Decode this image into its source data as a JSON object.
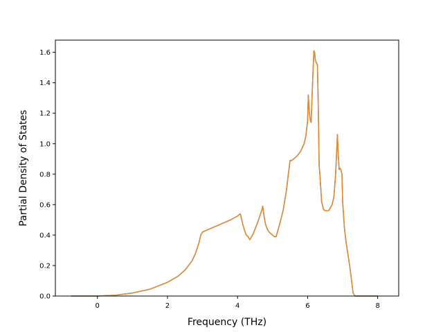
{
  "chart_data": {
    "type": "line",
    "title": "",
    "xlabel": "Frequency (THz)",
    "ylabel": "Partial Density of States",
    "xlim": [
      -1.2,
      8.6
    ],
    "ylim": [
      0.0,
      1.68
    ],
    "xticks": [
      0,
      2,
      4,
      6,
      8
    ],
    "yticks": [
      0.0,
      0.2,
      0.4,
      0.6,
      0.8,
      1.0,
      1.2,
      1.4,
      1.6
    ],
    "grid": false,
    "legend": "none",
    "series": [
      {
        "color": "#1f77b4",
        "x": [
          -0.75,
          0.0,
          0.5,
          1.0,
          1.5,
          2.0,
          2.3,
          2.5,
          2.7,
          2.8,
          2.9,
          2.95,
          3.0,
          3.2,
          3.4,
          3.6,
          3.8,
          4.0,
          4.08,
          4.15,
          4.2,
          4.25,
          4.3,
          4.35,
          4.4,
          4.45,
          4.5,
          4.6,
          4.7,
          4.72,
          4.76,
          4.8,
          4.85,
          4.9,
          4.95,
          5.0,
          5.05,
          5.1,
          5.15,
          5.2,
          5.3,
          5.4,
          5.45,
          5.5,
          5.55,
          5.6,
          5.7,
          5.8,
          5.9,
          5.95,
          6.0,
          6.02,
          6.05,
          6.08,
          6.1,
          6.15,
          6.18,
          6.2,
          6.22,
          6.25,
          6.28,
          6.3,
          6.33,
          6.35,
          6.4,
          6.45,
          6.5,
          6.6,
          6.7,
          6.75,
          6.8,
          6.85,
          6.87,
          6.9,
          6.92,
          6.95,
          6.98,
          7.0,
          7.05,
          7.1,
          7.2,
          7.3,
          7.35,
          7.4,
          8.0
        ],
        "y": [
          0.0,
          0.0,
          0.005,
          0.02,
          0.045,
          0.09,
          0.13,
          0.17,
          0.23,
          0.28,
          0.35,
          0.4,
          0.42,
          0.44,
          0.46,
          0.48,
          0.5,
          0.525,
          0.54,
          0.47,
          0.43,
          0.4,
          0.39,
          0.37,
          0.39,
          0.41,
          0.44,
          0.5,
          0.57,
          0.59,
          0.52,
          0.47,
          0.44,
          0.42,
          0.41,
          0.4,
          0.39,
          0.39,
          0.43,
          0.47,
          0.56,
          0.7,
          0.8,
          0.89,
          0.89,
          0.9,
          0.92,
          0.95,
          1.0,
          1.05,
          1.15,
          1.32,
          1.2,
          1.15,
          1.14,
          1.45,
          1.61,
          1.6,
          1.55,
          1.53,
          1.52,
          1.3,
          0.85,
          0.8,
          0.62,
          0.57,
          0.56,
          0.56,
          0.6,
          0.65,
          0.8,
          1.06,
          0.95,
          0.83,
          0.84,
          0.83,
          0.8,
          0.62,
          0.45,
          0.35,
          0.2,
          0.02,
          0.0,
          0.0,
          0.0
        ]
      },
      {
        "color": "#e8892c",
        "x": [
          -0.75,
          0.0,
          0.5,
          1.0,
          1.5,
          2.0,
          2.3,
          2.5,
          2.7,
          2.8,
          2.9,
          2.95,
          3.0,
          3.2,
          3.4,
          3.6,
          3.8,
          4.0,
          4.08,
          4.15,
          4.2,
          4.25,
          4.3,
          4.35,
          4.4,
          4.45,
          4.5,
          4.6,
          4.7,
          4.72,
          4.76,
          4.8,
          4.85,
          4.9,
          4.95,
          5.0,
          5.05,
          5.1,
          5.15,
          5.2,
          5.3,
          5.4,
          5.45,
          5.5,
          5.55,
          5.6,
          5.7,
          5.8,
          5.9,
          5.95,
          6.0,
          6.02,
          6.05,
          6.08,
          6.1,
          6.15,
          6.18,
          6.2,
          6.22,
          6.25,
          6.28,
          6.3,
          6.33,
          6.35,
          6.4,
          6.45,
          6.5,
          6.6,
          6.7,
          6.75,
          6.8,
          6.85,
          6.87,
          6.9,
          6.92,
          6.95,
          6.98,
          7.0,
          7.05,
          7.1,
          7.2,
          7.3,
          7.35,
          7.4,
          8.0
        ],
        "y": [
          0.0,
          0.0,
          0.005,
          0.02,
          0.045,
          0.09,
          0.13,
          0.17,
          0.23,
          0.28,
          0.35,
          0.4,
          0.42,
          0.44,
          0.46,
          0.48,
          0.5,
          0.525,
          0.54,
          0.47,
          0.43,
          0.4,
          0.39,
          0.37,
          0.39,
          0.41,
          0.44,
          0.5,
          0.57,
          0.59,
          0.52,
          0.47,
          0.44,
          0.42,
          0.41,
          0.4,
          0.39,
          0.39,
          0.43,
          0.47,
          0.56,
          0.7,
          0.8,
          0.89,
          0.89,
          0.9,
          0.92,
          0.95,
          1.0,
          1.05,
          1.15,
          1.32,
          1.2,
          1.15,
          1.14,
          1.45,
          1.61,
          1.6,
          1.55,
          1.53,
          1.52,
          1.3,
          0.85,
          0.8,
          0.62,
          0.57,
          0.56,
          0.56,
          0.6,
          0.65,
          0.8,
          1.06,
          0.95,
          0.83,
          0.84,
          0.83,
          0.8,
          0.62,
          0.45,
          0.35,
          0.2,
          0.02,
          0.0,
          0.0,
          0.0
        ]
      }
    ]
  }
}
